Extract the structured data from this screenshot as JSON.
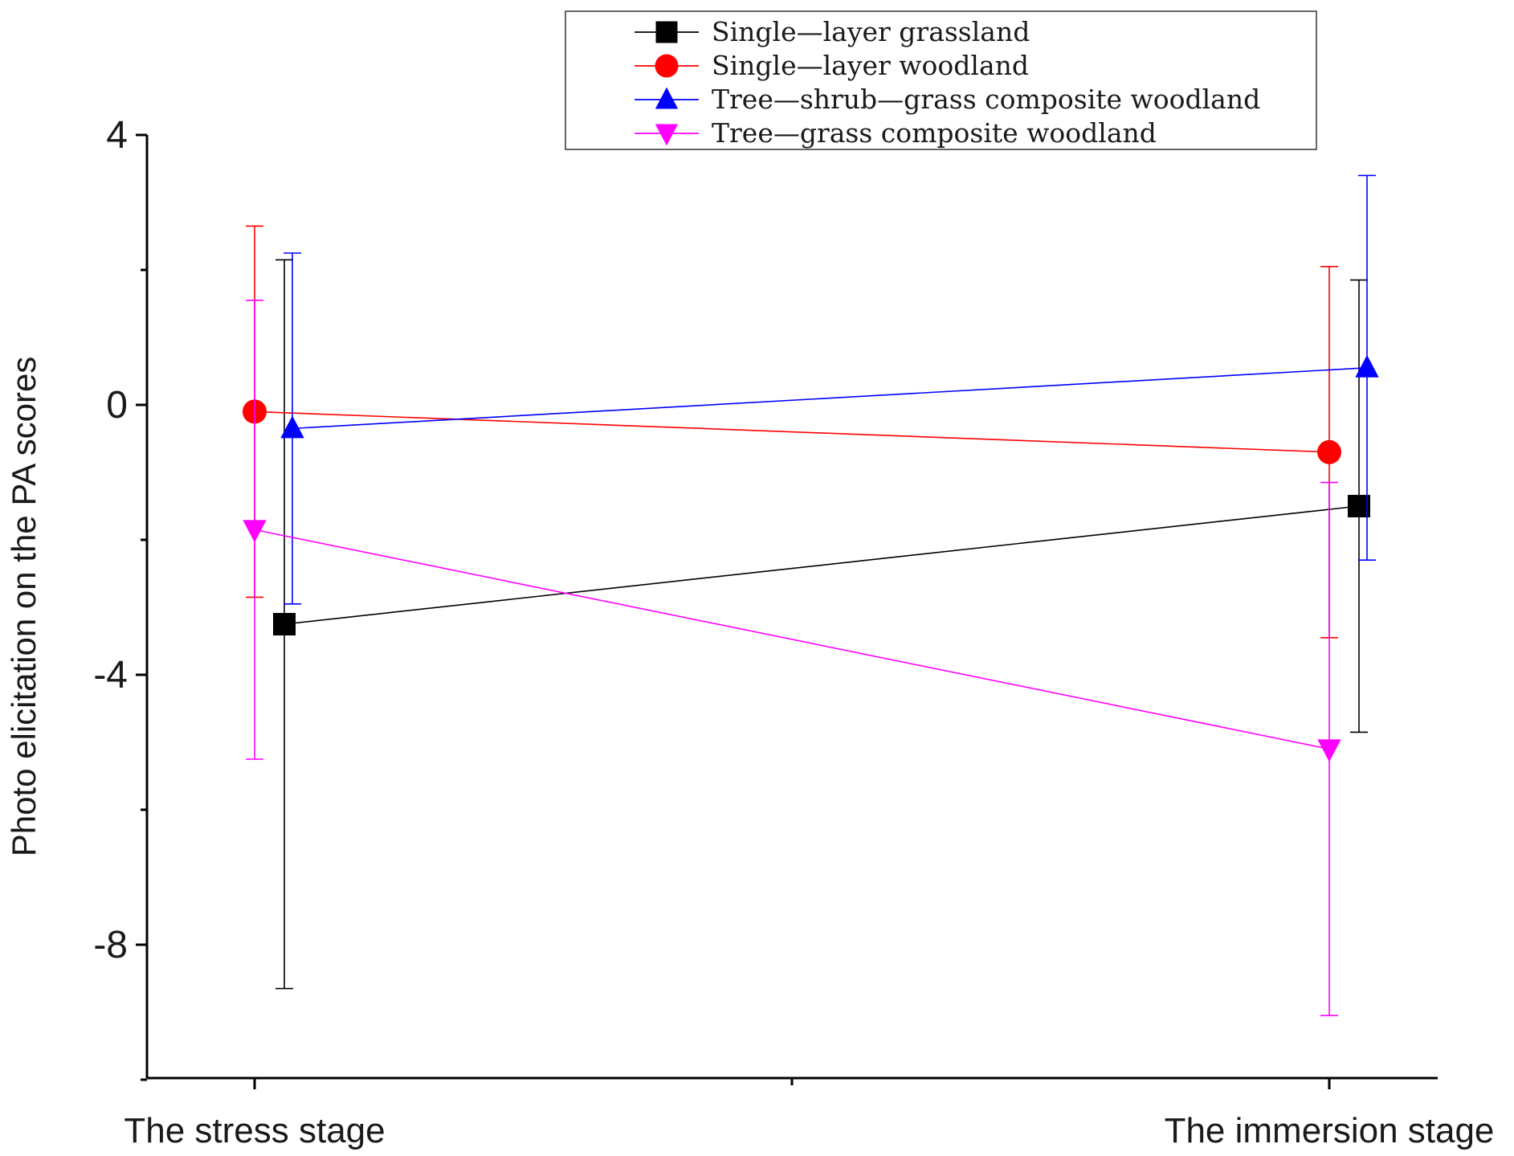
{
  "chart_data": {
    "type": "line",
    "title": "",
    "ylabel": "Photo elicitation on the PA scores",
    "xlabel": "",
    "ylim": [
      -10,
      4
    ],
    "yticks": [
      4,
      0,
      -4,
      -8
    ],
    "categories": [
      "The stress stage",
      "The immersion stage"
    ],
    "grid": false,
    "legend_position": "top",
    "series": [
      {
        "name": "Single—layer grassland",
        "color": "#000000",
        "marker": "square",
        "values": [
          -3.25,
          -1.5
        ],
        "error": [
          5.4,
          3.35
        ]
      },
      {
        "name": "Single—layer woodland",
        "color": "#ff0000",
        "marker": "circle",
        "values": [
          -0.1,
          -0.7
        ],
        "error": [
          2.75,
          2.75
        ]
      },
      {
        "name": "Tree—shrub—grass composite woodland",
        "color": "#0000ff",
        "marker": "triangle-up",
        "values": [
          -0.35,
          0.55
        ],
        "error": [
          2.6,
          2.85
        ]
      },
      {
        "name": "Tree—grass composite woodland",
        "color": "#ff00ff",
        "marker": "triangle-down",
        "values": [
          -1.85,
          -5.1
        ],
        "error": [
          3.4,
          3.95
        ]
      }
    ]
  }
}
